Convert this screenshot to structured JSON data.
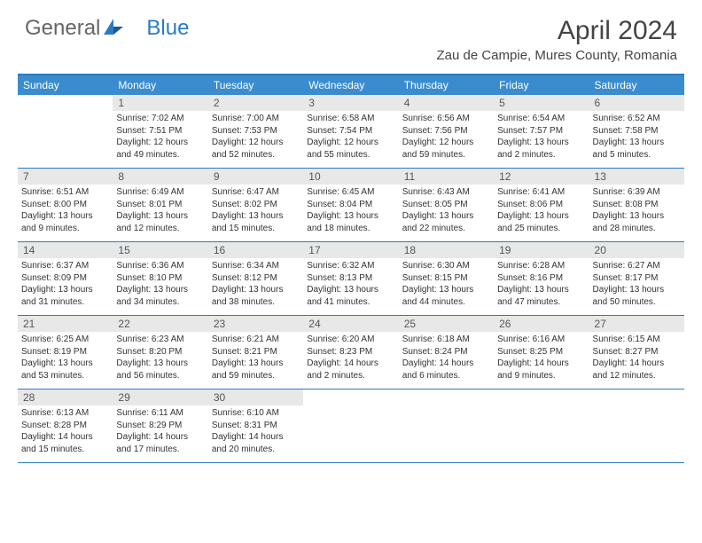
{
  "logo": {
    "general": "General",
    "blue": "Blue"
  },
  "title": "April 2024",
  "location": "Zau de Campie, Mures County, Romania",
  "weekdays": [
    "Sunday",
    "Monday",
    "Tuesday",
    "Wednesday",
    "Thursday",
    "Friday",
    "Saturday"
  ],
  "colors": {
    "header_bg": "#3a8ccf",
    "border": "#2b7bc4",
    "daynum_bg": "#e8e8e8",
    "text": "#333333",
    "logo_blue": "#2b7bc4"
  },
  "weeks": [
    [
      {
        "num": "",
        "sunrise": "",
        "sunset": "",
        "daylight": ""
      },
      {
        "num": "1",
        "sunrise": "Sunrise: 7:02 AM",
        "sunset": "Sunset: 7:51 PM",
        "daylight": "Daylight: 12 hours and 49 minutes."
      },
      {
        "num": "2",
        "sunrise": "Sunrise: 7:00 AM",
        "sunset": "Sunset: 7:53 PM",
        "daylight": "Daylight: 12 hours and 52 minutes."
      },
      {
        "num": "3",
        "sunrise": "Sunrise: 6:58 AM",
        "sunset": "Sunset: 7:54 PM",
        "daylight": "Daylight: 12 hours and 55 minutes."
      },
      {
        "num": "4",
        "sunrise": "Sunrise: 6:56 AM",
        "sunset": "Sunset: 7:56 PM",
        "daylight": "Daylight: 12 hours and 59 minutes."
      },
      {
        "num": "5",
        "sunrise": "Sunrise: 6:54 AM",
        "sunset": "Sunset: 7:57 PM",
        "daylight": "Daylight: 13 hours and 2 minutes."
      },
      {
        "num": "6",
        "sunrise": "Sunrise: 6:52 AM",
        "sunset": "Sunset: 7:58 PM",
        "daylight": "Daylight: 13 hours and 5 minutes."
      }
    ],
    [
      {
        "num": "7",
        "sunrise": "Sunrise: 6:51 AM",
        "sunset": "Sunset: 8:00 PM",
        "daylight": "Daylight: 13 hours and 9 minutes."
      },
      {
        "num": "8",
        "sunrise": "Sunrise: 6:49 AM",
        "sunset": "Sunset: 8:01 PM",
        "daylight": "Daylight: 13 hours and 12 minutes."
      },
      {
        "num": "9",
        "sunrise": "Sunrise: 6:47 AM",
        "sunset": "Sunset: 8:02 PM",
        "daylight": "Daylight: 13 hours and 15 minutes."
      },
      {
        "num": "10",
        "sunrise": "Sunrise: 6:45 AM",
        "sunset": "Sunset: 8:04 PM",
        "daylight": "Daylight: 13 hours and 18 minutes."
      },
      {
        "num": "11",
        "sunrise": "Sunrise: 6:43 AM",
        "sunset": "Sunset: 8:05 PM",
        "daylight": "Daylight: 13 hours and 22 minutes."
      },
      {
        "num": "12",
        "sunrise": "Sunrise: 6:41 AM",
        "sunset": "Sunset: 8:06 PM",
        "daylight": "Daylight: 13 hours and 25 minutes."
      },
      {
        "num": "13",
        "sunrise": "Sunrise: 6:39 AM",
        "sunset": "Sunset: 8:08 PM",
        "daylight": "Daylight: 13 hours and 28 minutes."
      }
    ],
    [
      {
        "num": "14",
        "sunrise": "Sunrise: 6:37 AM",
        "sunset": "Sunset: 8:09 PM",
        "daylight": "Daylight: 13 hours and 31 minutes."
      },
      {
        "num": "15",
        "sunrise": "Sunrise: 6:36 AM",
        "sunset": "Sunset: 8:10 PM",
        "daylight": "Daylight: 13 hours and 34 minutes."
      },
      {
        "num": "16",
        "sunrise": "Sunrise: 6:34 AM",
        "sunset": "Sunset: 8:12 PM",
        "daylight": "Daylight: 13 hours and 38 minutes."
      },
      {
        "num": "17",
        "sunrise": "Sunrise: 6:32 AM",
        "sunset": "Sunset: 8:13 PM",
        "daylight": "Daylight: 13 hours and 41 minutes."
      },
      {
        "num": "18",
        "sunrise": "Sunrise: 6:30 AM",
        "sunset": "Sunset: 8:15 PM",
        "daylight": "Daylight: 13 hours and 44 minutes."
      },
      {
        "num": "19",
        "sunrise": "Sunrise: 6:28 AM",
        "sunset": "Sunset: 8:16 PM",
        "daylight": "Daylight: 13 hours and 47 minutes."
      },
      {
        "num": "20",
        "sunrise": "Sunrise: 6:27 AM",
        "sunset": "Sunset: 8:17 PM",
        "daylight": "Daylight: 13 hours and 50 minutes."
      }
    ],
    [
      {
        "num": "21",
        "sunrise": "Sunrise: 6:25 AM",
        "sunset": "Sunset: 8:19 PM",
        "daylight": "Daylight: 13 hours and 53 minutes."
      },
      {
        "num": "22",
        "sunrise": "Sunrise: 6:23 AM",
        "sunset": "Sunset: 8:20 PM",
        "daylight": "Daylight: 13 hours and 56 minutes."
      },
      {
        "num": "23",
        "sunrise": "Sunrise: 6:21 AM",
        "sunset": "Sunset: 8:21 PM",
        "daylight": "Daylight: 13 hours and 59 minutes."
      },
      {
        "num": "24",
        "sunrise": "Sunrise: 6:20 AM",
        "sunset": "Sunset: 8:23 PM",
        "daylight": "Daylight: 14 hours and 2 minutes."
      },
      {
        "num": "25",
        "sunrise": "Sunrise: 6:18 AM",
        "sunset": "Sunset: 8:24 PM",
        "daylight": "Daylight: 14 hours and 6 minutes."
      },
      {
        "num": "26",
        "sunrise": "Sunrise: 6:16 AM",
        "sunset": "Sunset: 8:25 PM",
        "daylight": "Daylight: 14 hours and 9 minutes."
      },
      {
        "num": "27",
        "sunrise": "Sunrise: 6:15 AM",
        "sunset": "Sunset: 8:27 PM",
        "daylight": "Daylight: 14 hours and 12 minutes."
      }
    ],
    [
      {
        "num": "28",
        "sunrise": "Sunrise: 6:13 AM",
        "sunset": "Sunset: 8:28 PM",
        "daylight": "Daylight: 14 hours and 15 minutes."
      },
      {
        "num": "29",
        "sunrise": "Sunrise: 6:11 AM",
        "sunset": "Sunset: 8:29 PM",
        "daylight": "Daylight: 14 hours and 17 minutes."
      },
      {
        "num": "30",
        "sunrise": "Sunrise: 6:10 AM",
        "sunset": "Sunset: 8:31 PM",
        "daylight": "Daylight: 14 hours and 20 minutes."
      },
      {
        "num": "",
        "sunrise": "",
        "sunset": "",
        "daylight": ""
      },
      {
        "num": "",
        "sunrise": "",
        "sunset": "",
        "daylight": ""
      },
      {
        "num": "",
        "sunrise": "",
        "sunset": "",
        "daylight": ""
      },
      {
        "num": "",
        "sunrise": "",
        "sunset": "",
        "daylight": ""
      }
    ]
  ]
}
